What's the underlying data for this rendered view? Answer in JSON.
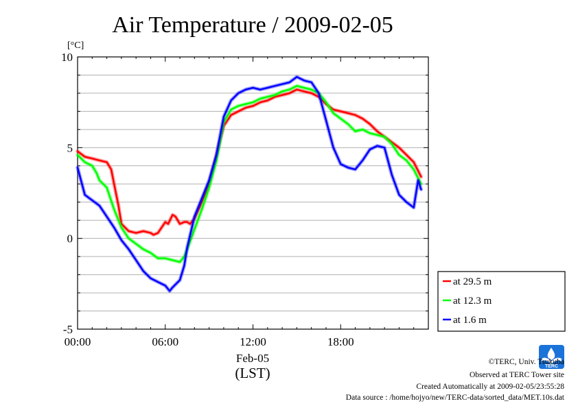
{
  "chart_data": {
    "type": "line",
    "title": "Air Temperature / 2009-02-05",
    "ylabel": "[°C]",
    "xlabel": "(LST)",
    "date_label": "Feb-05",
    "x_unit": "hours",
    "xlim": [
      0,
      24
    ],
    "ylim": [
      -5,
      10
    ],
    "y_ticks": [
      -5,
      0,
      5,
      10
    ],
    "y_minor_step": 1,
    "x_ticks": [
      {
        "value": 0,
        "label": "00:00"
      },
      {
        "value": 6,
        "label": "06:00"
      },
      {
        "value": 12,
        "label": "12:00"
      },
      {
        "value": 18,
        "label": "18:00"
      }
    ],
    "grid": true,
    "legend_placement": "right-bottom",
    "series": [
      {
        "name": "at 29.5 m",
        "color": "#ff0000",
        "x": [
          0,
          0.5,
          1,
          1.5,
          2,
          2.3,
          2.5,
          2.8,
          3,
          3.5,
          4,
          4.5,
          5,
          5.2,
          5.5,
          6,
          6.2,
          6.5,
          6.7,
          7,
          7.3,
          7.5,
          7.7,
          8,
          8.5,
          9,
          9.5,
          10,
          10.5,
          11,
          11.5,
          12,
          12.5,
          13,
          13.5,
          14,
          14.5,
          15,
          15.5,
          16,
          16.5,
          17,
          17.5,
          18,
          18.5,
          19,
          19.5,
          20,
          20.5,
          21,
          21.5,
          22,
          22.5,
          23,
          23.5
        ],
        "values": [
          4.8,
          4.5,
          4.4,
          4.3,
          4.2,
          3.8,
          3.0,
          1.8,
          0.8,
          0.4,
          0.3,
          0.4,
          0.3,
          0.2,
          0.3,
          0.9,
          0.8,
          1.3,
          1.2,
          0.8,
          0.9,
          0.9,
          0.8,
          1.1,
          2.0,
          3.0,
          4.6,
          6.2,
          6.8,
          7.0,
          7.2,
          7.3,
          7.5,
          7.6,
          7.8,
          7.9,
          8.0,
          8.2,
          8.1,
          8.0,
          7.8,
          7.4,
          7.1,
          7.0,
          6.9,
          6.8,
          6.6,
          6.3,
          5.9,
          5.6,
          5.3,
          5.0,
          4.6,
          4.2,
          3.4
        ]
      },
      {
        "name": "at 12.3 m",
        "color": "#00ff00",
        "x": [
          0,
          0.5,
          1,
          1.3,
          1.5,
          2,
          2.5,
          3,
          3.5,
          4,
          4.5,
          5,
          5.5,
          6,
          6.5,
          7,
          7.3,
          7.5,
          8,
          8.5,
          9,
          9.5,
          10,
          10.5,
          11,
          11.5,
          12,
          12.5,
          13,
          13.5,
          14,
          14.5,
          15,
          15.5,
          16,
          16.5,
          17,
          17.5,
          18,
          18.5,
          19,
          19.5,
          20,
          20.5,
          21,
          21.5,
          22,
          22.5,
          23,
          23.5
        ],
        "values": [
          4.6,
          4.2,
          4.0,
          3.6,
          3.2,
          2.8,
          1.6,
          0.6,
          0.0,
          -0.3,
          -0.6,
          -0.8,
          -1.1,
          -1.1,
          -1.2,
          -1.3,
          -1.0,
          -0.6,
          0.5,
          1.6,
          2.8,
          4.3,
          6.4,
          7.1,
          7.3,
          7.4,
          7.5,
          7.7,
          7.8,
          7.9,
          8.1,
          8.2,
          8.4,
          8.3,
          8.2,
          8.0,
          7.5,
          6.9,
          6.6,
          6.3,
          5.9,
          6.0,
          5.8,
          5.7,
          5.6,
          5.2,
          4.6,
          4.3,
          3.8,
          3.0
        ]
      },
      {
        "name": "at 1.6 m",
        "color": "#0000ff",
        "x": [
          0,
          0.3,
          0.5,
          1,
          1.5,
          2,
          2.5,
          3,
          3.5,
          4,
          4.5,
          5,
          5.5,
          6,
          6.3,
          6.5,
          7,
          7.3,
          7.5,
          8,
          8.5,
          9,
          9.5,
          10,
          10.5,
          11,
          11.5,
          12,
          12.5,
          13,
          13.5,
          14,
          14.5,
          15,
          15.5,
          16,
          16.5,
          17,
          17.5,
          18,
          18.5,
          19,
          19.5,
          20,
          20.5,
          21,
          21.5,
          22,
          22.5,
          23,
          23.3,
          23.5
        ],
        "values": [
          3.9,
          3.0,
          2.4,
          2.1,
          1.8,
          1.2,
          0.6,
          -0.1,
          -0.6,
          -1.2,
          -1.8,
          -2.2,
          -2.4,
          -2.6,
          -2.9,
          -2.7,
          -2.3,
          -1.5,
          -0.5,
          1.2,
          2.2,
          3.2,
          4.6,
          6.7,
          7.6,
          8.0,
          8.2,
          8.3,
          8.2,
          8.3,
          8.4,
          8.5,
          8.6,
          8.9,
          8.7,
          8.6,
          8.0,
          6.5,
          5.0,
          4.1,
          3.9,
          3.8,
          4.3,
          4.9,
          5.1,
          5.0,
          3.5,
          2.4,
          2.0,
          1.7,
          3.2,
          2.7
        ]
      }
    ]
  },
  "footer": {
    "copyright": "©TERC, Univ. Tsukuba",
    "site": "Observed at TERC Tower site",
    "created": "Created Automatically at 2009-02-05/23:55:28",
    "source": "Data source : /home/hojyo/new/TERC-data/sorted_data/MET.10s.dat"
  },
  "logo": {
    "text": "TERC",
    "color": "#1a73d9"
  }
}
